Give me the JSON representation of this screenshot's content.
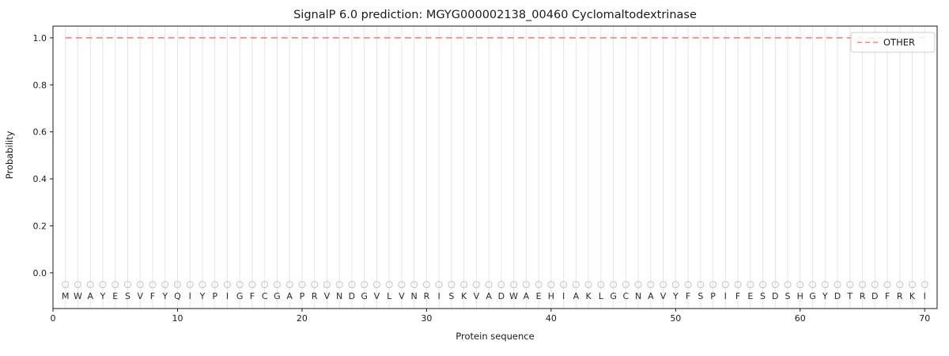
{
  "chart_data": {
    "type": "line",
    "title": "SignalP 6.0 prediction: MGYG000002138_00460 Cyclomaltodextrinase",
    "xlabel": "Protein sequence",
    "ylabel": "Probability",
    "xlim": [
      0,
      71
    ],
    "ylim": [
      -0.152,
      1.05
    ],
    "xtick_values": [
      0,
      10,
      20,
      30,
      40,
      50,
      60,
      70
    ],
    "xtick_labels": [
      "0",
      "10",
      "20",
      "30",
      "40",
      "50",
      "60",
      "70"
    ],
    "ytick_values": [
      0.0,
      0.2,
      0.4,
      0.6,
      0.8,
      1.0
    ],
    "ytick_labels": [
      "0.0",
      "0.2",
      "0.4",
      "0.6",
      "0.8",
      "1.0"
    ],
    "grid": "vertical line at every residue position",
    "legend": {
      "position": "upper right",
      "entries": [
        {
          "label": "OTHER",
          "color": "#f98080",
          "linestyle": "dashed"
        }
      ]
    },
    "sequence": [
      "M",
      "W",
      "A",
      "Y",
      "E",
      "S",
      "V",
      "F",
      "Y",
      "Q",
      "I",
      "Y",
      "P",
      "I",
      "G",
      "F",
      "C",
      "G",
      "A",
      "P",
      "R",
      "V",
      "N",
      "D",
      "G",
      "V",
      "L",
      "V",
      "N",
      "R",
      "I",
      "S",
      "K",
      "V",
      "A",
      "D",
      "W",
      "A",
      "E",
      "H",
      "I",
      "A",
      "K",
      "L",
      "G",
      "C",
      "N",
      "A",
      "V",
      "Y",
      "F",
      "S",
      "P",
      "I",
      "F",
      "E",
      "S",
      "D",
      "S",
      "H",
      "G",
      "Y",
      "D",
      "T",
      "R",
      "D",
      "F",
      "R",
      "K",
      "I"
    ],
    "series": [
      {
        "name": "OTHER",
        "x_start": 1,
        "values": [
          1.0,
          1.0,
          1.0,
          1.0,
          1.0,
          1.0,
          1.0,
          1.0,
          1.0,
          1.0,
          1.0,
          1.0,
          1.0,
          1.0,
          1.0,
          1.0,
          1.0,
          1.0,
          1.0,
          1.0,
          1.0,
          1.0,
          1.0,
          1.0,
          1.0,
          1.0,
          1.0,
          1.0,
          1.0,
          1.0,
          1.0,
          1.0,
          1.0,
          1.0,
          1.0,
          1.0,
          1.0,
          1.0,
          1.0,
          1.0,
          1.0,
          1.0,
          1.0,
          1.0,
          1.0,
          1.0,
          1.0,
          1.0,
          1.0,
          1.0,
          1.0,
          1.0,
          1.0,
          1.0,
          1.0,
          1.0,
          1.0,
          1.0,
          1.0,
          1.0,
          1.0,
          1.0,
          1.0,
          1.0,
          1.0,
          1.0,
          1.0,
          1.0,
          1.0,
          1.0
        ]
      }
    ],
    "marker_y": -0.05,
    "colors": {
      "other_line": "#f98080",
      "grid": "#e5e5e5",
      "marker": "#c4c4c4",
      "letter": "#2b2b2b",
      "axis": "#1a1a1a",
      "legend_border": "#cccccc"
    }
  }
}
